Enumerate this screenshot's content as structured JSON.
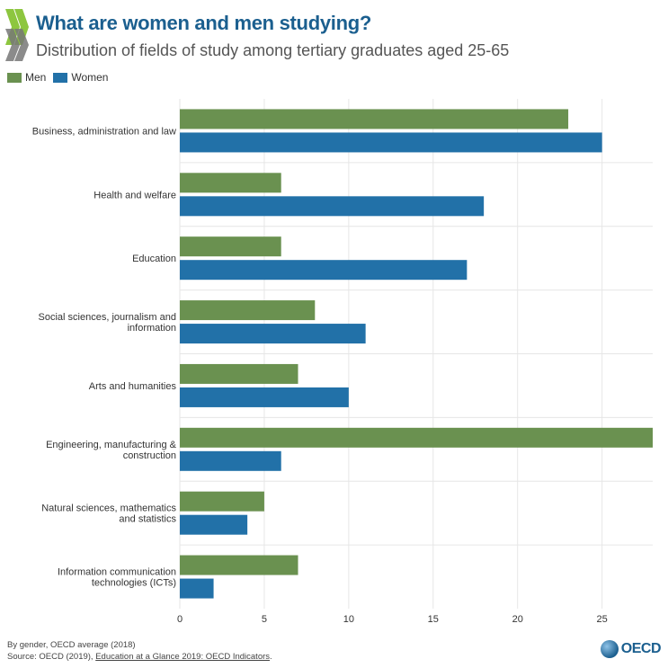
{
  "header": {
    "title": "What are women and men studying?",
    "subtitle": "Distribution of fields of study among tertiary graduates aged 25-65"
  },
  "legend": [
    {
      "label": "Men",
      "color": "#6a9150"
    },
    {
      "label": "Women",
      "color": "#2271a8"
    }
  ],
  "chart_data": {
    "type": "bar",
    "orientation": "horizontal",
    "categories": [
      "Business, administration and law",
      "Health and welfare",
      "Education",
      "Social sciences, journalism and information",
      "Arts and humanities",
      "Engineering, manufacturing & construction",
      "Natural sciences, mathematics and statistics",
      "Information communication technologies (ICTs)"
    ],
    "series": [
      {
        "name": "Men",
        "color": "#6a9150",
        "values": [
          23,
          6,
          6,
          8,
          7,
          28,
          5,
          7
        ]
      },
      {
        "name": "Women",
        "color": "#2271a8",
        "values": [
          25,
          18,
          17,
          11,
          10,
          6,
          4,
          2
        ]
      }
    ],
    "xticks": [
      "0",
      "5",
      "10",
      "15",
      "20",
      "25"
    ],
    "xlim": [
      0,
      28
    ],
    "grid": true,
    "legend_position": "top-left"
  },
  "footer": {
    "note": "By gender, OECD average (2018)",
    "source_prefix": "Source: OECD (2019), ",
    "source_link": "Education at a Glance 2019: OECD Indicators",
    "source_suffix": ".",
    "brand": "OECD"
  }
}
